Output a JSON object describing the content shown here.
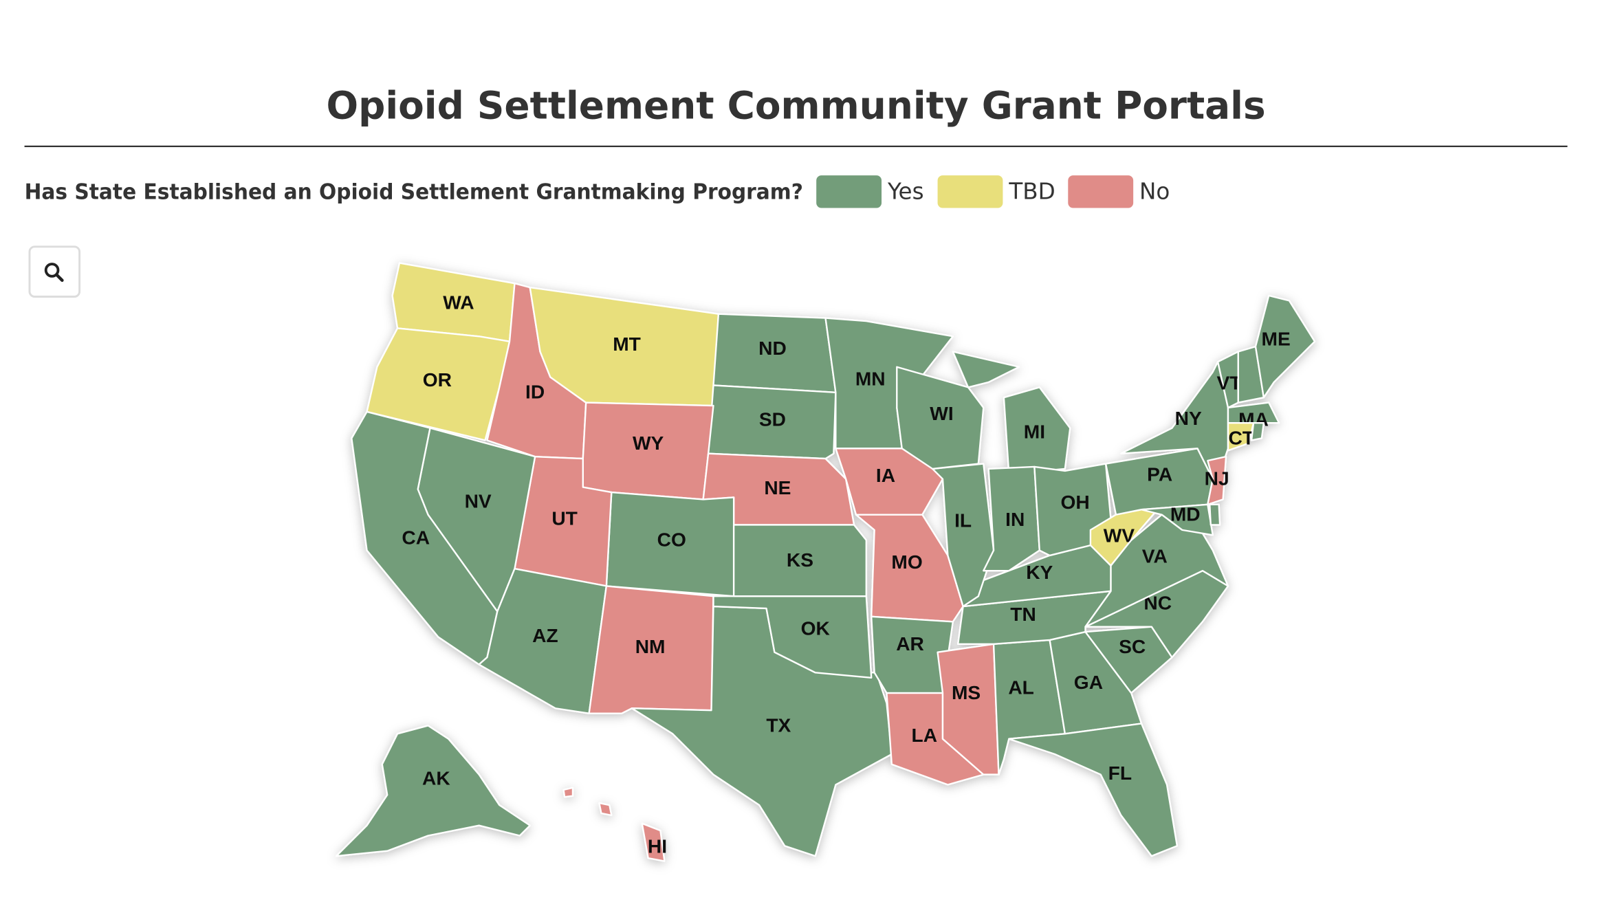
{
  "header": {
    "title": "Opioid Settlement Community Grant Portals"
  },
  "legend": {
    "question": "Has State Established an Opioid Settlement Grantmaking Program?",
    "items": [
      {
        "label": "Yes",
        "color": "#739d7a"
      },
      {
        "label": "TBD",
        "color": "#e8df7b"
      },
      {
        "label": "No",
        "color": "#e08c88"
      }
    ]
  },
  "states": [
    {
      "code": "WA",
      "status": "TBD"
    },
    {
      "code": "OR",
      "status": "TBD"
    },
    {
      "code": "ID",
      "status": "No"
    },
    {
      "code": "MT",
      "status": "TBD"
    },
    {
      "code": "ND",
      "status": "Yes"
    },
    {
      "code": "SD",
      "status": "Yes"
    },
    {
      "code": "WY",
      "status": "No"
    },
    {
      "code": "NE",
      "status": "No"
    },
    {
      "code": "CO",
      "status": "Yes"
    },
    {
      "code": "UT",
      "status": "No"
    },
    {
      "code": "NV",
      "status": "Yes"
    },
    {
      "code": "CA",
      "status": "Yes"
    },
    {
      "code": "AZ",
      "status": "Yes"
    },
    {
      "code": "NM",
      "status": "No"
    },
    {
      "code": "TX",
      "status": "Yes"
    },
    {
      "code": "OK",
      "status": "Yes"
    },
    {
      "code": "KS",
      "status": "Yes"
    },
    {
      "code": "MN",
      "status": "Yes"
    },
    {
      "code": "IA",
      "status": "No"
    },
    {
      "code": "MO",
      "status": "No"
    },
    {
      "code": "AR",
      "status": "Yes"
    },
    {
      "code": "LA",
      "status": "No"
    },
    {
      "code": "MS",
      "status": "No"
    },
    {
      "code": "AL",
      "status": "Yes"
    },
    {
      "code": "GA",
      "status": "Yes"
    },
    {
      "code": "FL",
      "status": "Yes"
    },
    {
      "code": "SC",
      "status": "Yes"
    },
    {
      "code": "NC",
      "status": "Yes"
    },
    {
      "code": "TN",
      "status": "Yes"
    },
    {
      "code": "KY",
      "status": "Yes"
    },
    {
      "code": "IL",
      "status": "Yes"
    },
    {
      "code": "WI",
      "status": "Yes"
    },
    {
      "code": "MI",
      "status": "Yes"
    },
    {
      "code": "IN",
      "status": "Yes"
    },
    {
      "code": "OH",
      "status": "Yes"
    },
    {
      "code": "WV",
      "status": "TBD"
    },
    {
      "code": "VA",
      "status": "Yes"
    },
    {
      "code": "PA",
      "status": "Yes"
    },
    {
      "code": "NY",
      "status": "Yes"
    },
    {
      "code": "NJ",
      "status": "No"
    },
    {
      "code": "MD",
      "status": "Yes"
    },
    {
      "code": "VT",
      "status": "Yes"
    },
    {
      "code": null,
      "status": "Yes"
    },
    {
      "code": "ME",
      "status": "Yes"
    },
    {
      "code": "MA",
      "status": "Yes"
    },
    {
      "code": "CT",
      "status": "TBD"
    },
    {
      "code": null,
      "status": "Yes"
    },
    {
      "code": null,
      "status": "Yes"
    },
    {
      "code": "AK",
      "status": "Yes"
    },
    {
      "code": "HI",
      "status": "No"
    }
  ]
}
